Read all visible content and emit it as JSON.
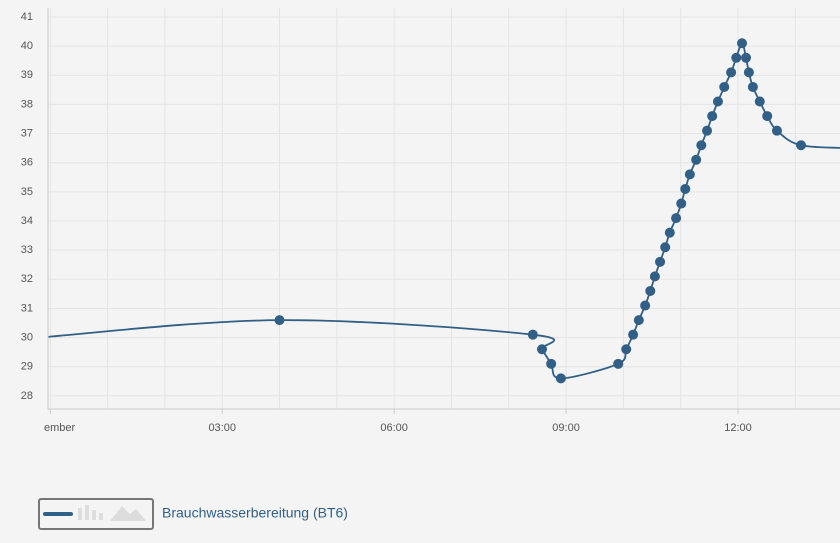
{
  "chart_data": {
    "type": "line",
    "x": [
      -0.2,
      4.0,
      8.42,
      8.58,
      8.74,
      8.91,
      9.91,
      10.05,
      10.17,
      10.27,
      10.38,
      10.47,
      10.55,
      10.64,
      10.73,
      10.81,
      10.92,
      11.01,
      11.08,
      11.16,
      11.27,
      11.36,
      11.46,
      11.55,
      11.65,
      11.76,
      11.88,
      11.97,
      12.07,
      12.14,
      12.19,
      12.26,
      12.38,
      12.51,
      12.68,
      13.1,
      14.0
    ],
    "series": [
      {
        "name": "Brauchwasserbereitung (BT6)",
        "color": "#325f86",
        "values": [
          30.0,
          30.6,
          30.1,
          29.6,
          29.1,
          28.6,
          29.1,
          29.6,
          30.1,
          30.6,
          31.1,
          31.6,
          32.1,
          32.6,
          33.1,
          33.6,
          34.1,
          34.6,
          35.1,
          35.6,
          36.1,
          36.6,
          37.1,
          37.6,
          38.1,
          38.6,
          39.1,
          39.6,
          40.1,
          39.6,
          39.1,
          38.6,
          38.1,
          37.6,
          37.1,
          36.6,
          36.5
        ]
      }
    ],
    "xlim": [
      -0.04,
      13.78
    ],
    "xticks": [
      {
        "value": 0,
        "label": "ember"
      },
      {
        "value": 3,
        "label": "03:00"
      },
      {
        "value": 6,
        "label": "06:00"
      },
      {
        "value": 9,
        "label": "09:00"
      },
      {
        "value": 12,
        "label": "12:00"
      }
    ],
    "xminor": [
      1,
      2,
      4,
      5,
      7,
      8,
      10,
      11,
      13
    ],
    "ylim": [
      27.55,
      41.0
    ],
    "yticks": [
      28,
      29,
      30,
      31,
      32,
      33,
      34,
      35,
      36,
      37,
      38,
      39,
      40,
      41
    ],
    "grid": true
  }
}
